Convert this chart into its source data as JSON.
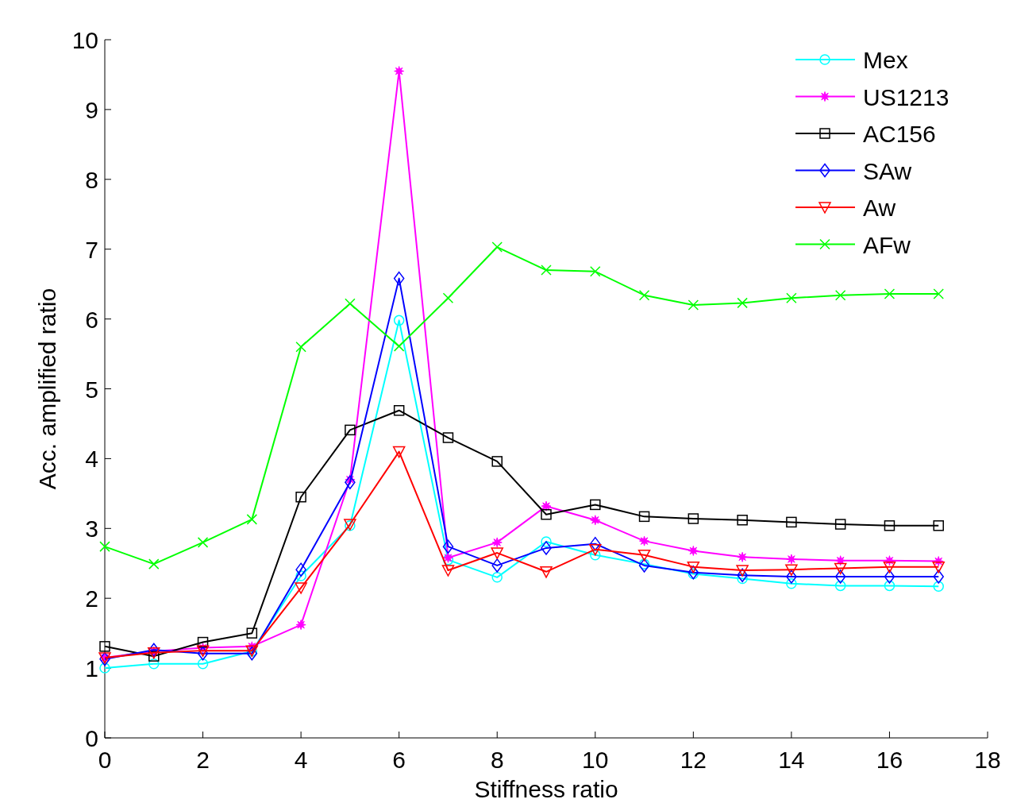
{
  "chart_data": {
    "type": "line",
    "xlabel": "Stiffness ratio",
    "ylabel": "Acc. amplified ratio",
    "x": [
      0,
      1,
      2,
      3,
      4,
      5,
      6,
      7,
      8,
      9,
      10,
      11,
      12,
      13,
      14,
      15,
      16,
      17
    ],
    "xlim": [
      0,
      18
    ],
    "xticks": [
      0,
      2,
      4,
      6,
      8,
      10,
      12,
      14,
      16,
      18
    ],
    "ylim": [
      0,
      10
    ],
    "yticks": [
      0,
      1,
      2,
      3,
      4,
      5,
      6,
      7,
      8,
      9,
      10
    ],
    "grid": false,
    "legend": "top right",
    "series": [
      {
        "name": "Mex",
        "color": "#00ffff",
        "marker": "circle",
        "values": [
          1.0,
          1.06,
          1.06,
          1.24,
          2.32,
          3.04,
          5.98,
          2.55,
          2.3,
          2.81,
          2.62,
          2.49,
          2.35,
          2.28,
          2.21,
          2.18,
          2.18,
          2.17
        ]
      },
      {
        "name": "US1213",
        "color": "#ff00ff",
        "marker": "star",
        "values": [
          1.15,
          1.24,
          1.29,
          1.31,
          1.62,
          3.7,
          9.55,
          2.58,
          2.8,
          3.32,
          3.12,
          2.82,
          2.68,
          2.59,
          2.56,
          2.54,
          2.54,
          2.53
        ]
      },
      {
        "name": "AC156",
        "color": "#000000",
        "marker": "square",
        "values": [
          1.31,
          1.17,
          1.37,
          1.5,
          3.45,
          4.41,
          4.69,
          4.3,
          3.96,
          3.2,
          3.34,
          3.17,
          3.14,
          3.12,
          3.09,
          3.06,
          3.04,
          3.04
        ]
      },
      {
        "name": "SAw",
        "color": "#0000ff",
        "marker": "diamond",
        "values": [
          1.13,
          1.26,
          1.21,
          1.21,
          2.41,
          3.66,
          6.58,
          2.74,
          2.47,
          2.72,
          2.78,
          2.47,
          2.37,
          2.33,
          2.31,
          2.31,
          2.31,
          2.31
        ]
      },
      {
        "name": "Aw",
        "color": "#ff0000",
        "marker": "triangle",
        "values": [
          1.15,
          1.22,
          1.25,
          1.25,
          2.15,
          3.06,
          4.1,
          2.4,
          2.65,
          2.38,
          2.7,
          2.62,
          2.45,
          2.4,
          2.41,
          2.43,
          2.45,
          2.45
        ]
      },
      {
        "name": "AFw",
        "color": "#00ff00",
        "marker": "cross",
        "values": [
          2.74,
          2.49,
          2.8,
          3.13,
          5.6,
          6.22,
          5.61,
          6.3,
          7.03,
          6.7,
          6.68,
          6.34,
          6.2,
          6.23,
          6.3,
          6.34,
          6.36,
          6.36
        ]
      }
    ]
  }
}
